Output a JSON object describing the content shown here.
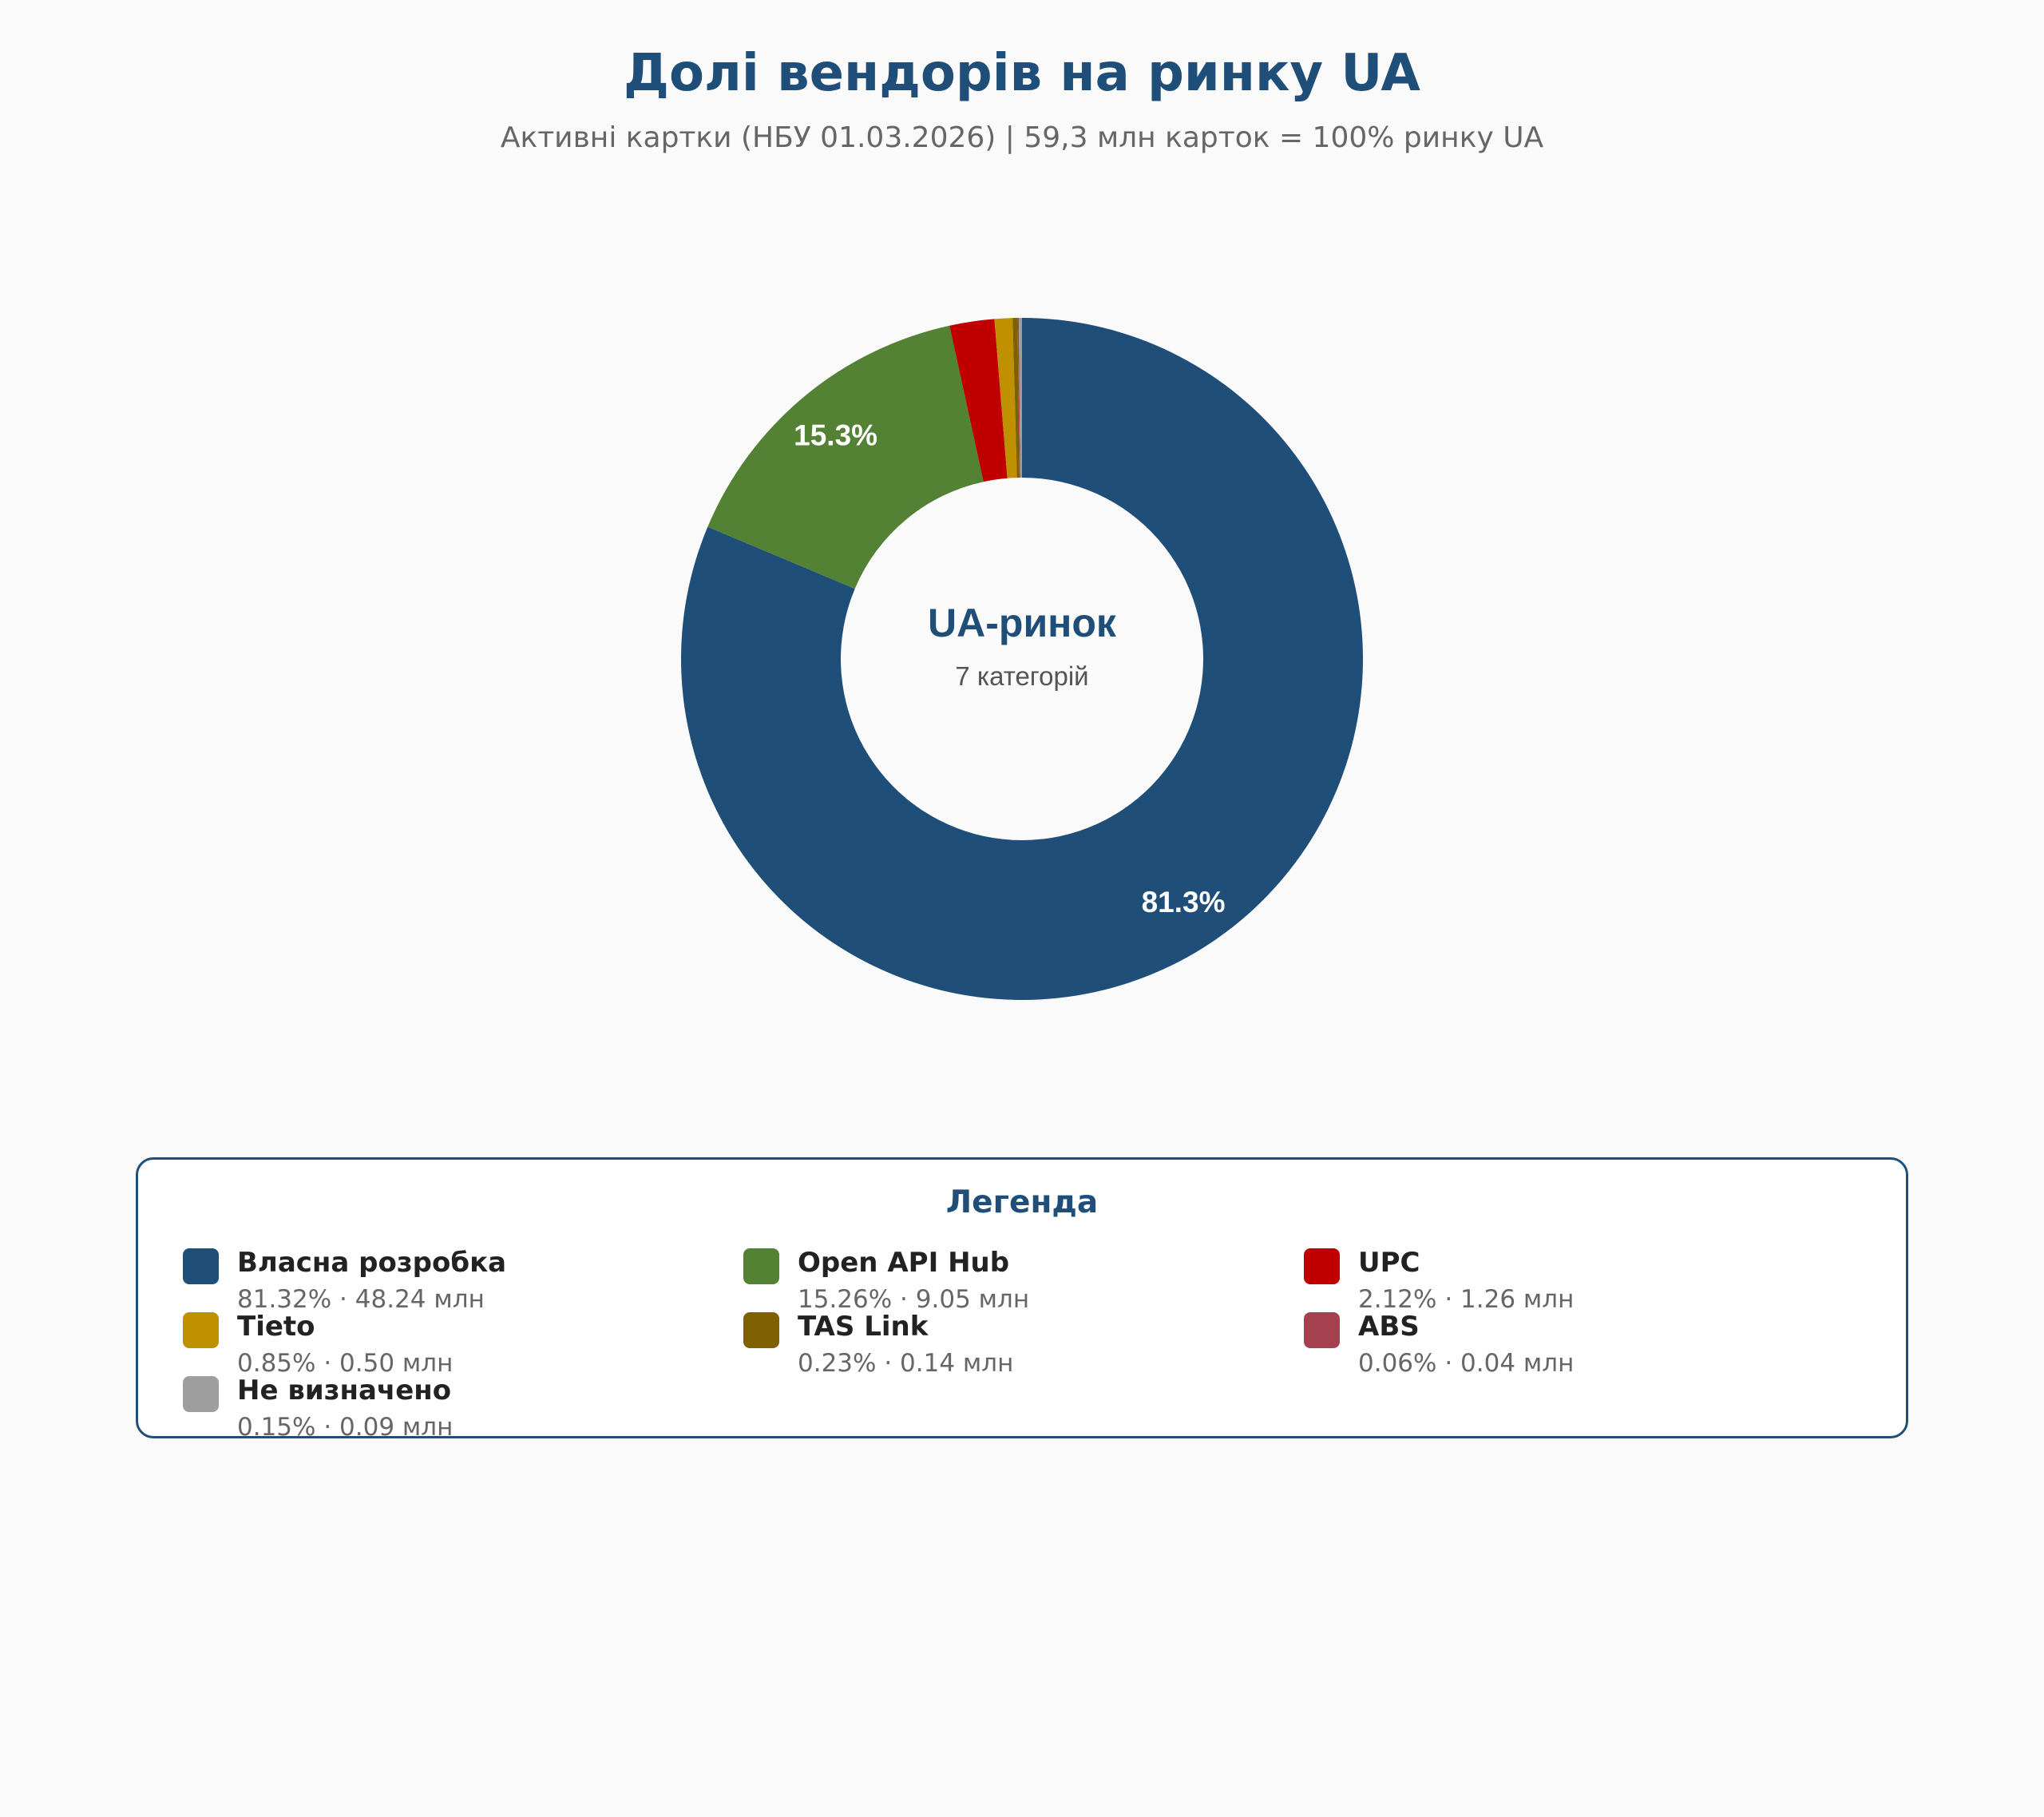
{
  "header": {
    "title": "Долі вендорів на ринку UA",
    "subtitle": "Активні картки (НБУ 01.03.2026) | 59,3 млн карток = 100% ринку UA"
  },
  "chart_data": {
    "type": "pie",
    "donut": true,
    "title": "Долі вендорів на ринку UA",
    "subtitle": "Активні картки (НБУ 01.03.2026) | 59,3 млн карток = 100% ринку UA",
    "center_title": "UA-ринок",
    "center_subtitle": "7 категорій",
    "categories": [
      "Власна розробка",
      "Open API Hub",
      "UPC",
      "Tieto",
      "TAS Link",
      "ABS",
      "Не визначено"
    ],
    "values": [
      81.32,
      15.26,
      2.12,
      0.85,
      0.23,
      0.06,
      0.15
    ],
    "cards_mln": [
      48.24,
      9.05,
      1.26,
      0.5,
      0.14,
      0.04,
      0.09
    ],
    "colors": [
      "#1f4e79",
      "#548235",
      "#c00000",
      "#bf9000",
      "#7f6000",
      "#a5404f",
      "#9e9e9e"
    ],
    "slice_labels": [
      "81.3%",
      "15.3%",
      "",
      "",
      "",
      "",
      ""
    ],
    "legend_placement": "bottom"
  },
  "legend": {
    "title": "Легенда",
    "items": [
      {
        "name": "Власна розробка",
        "value": "81.32% · 48.24 млн",
        "color": "#1f4e79"
      },
      {
        "name": "Open API Hub",
        "value": "15.26% · 9.05 млн",
        "color": "#548235"
      },
      {
        "name": "UPC",
        "value": "2.12% · 1.26 млн",
        "color": "#c00000"
      },
      {
        "name": "Tieto",
        "value": "0.85% · 0.50 млн",
        "color": "#bf9000"
      },
      {
        "name": "TAS Link",
        "value": "0.23% · 0.14 млн",
        "color": "#7f6000"
      },
      {
        "name": "ABS",
        "value": "0.06% · 0.04 млн",
        "color": "#a5404f"
      },
      {
        "name": "Не визначено",
        "value": "0.15% · 0.09 млн",
        "color": "#9e9e9e"
      }
    ]
  }
}
